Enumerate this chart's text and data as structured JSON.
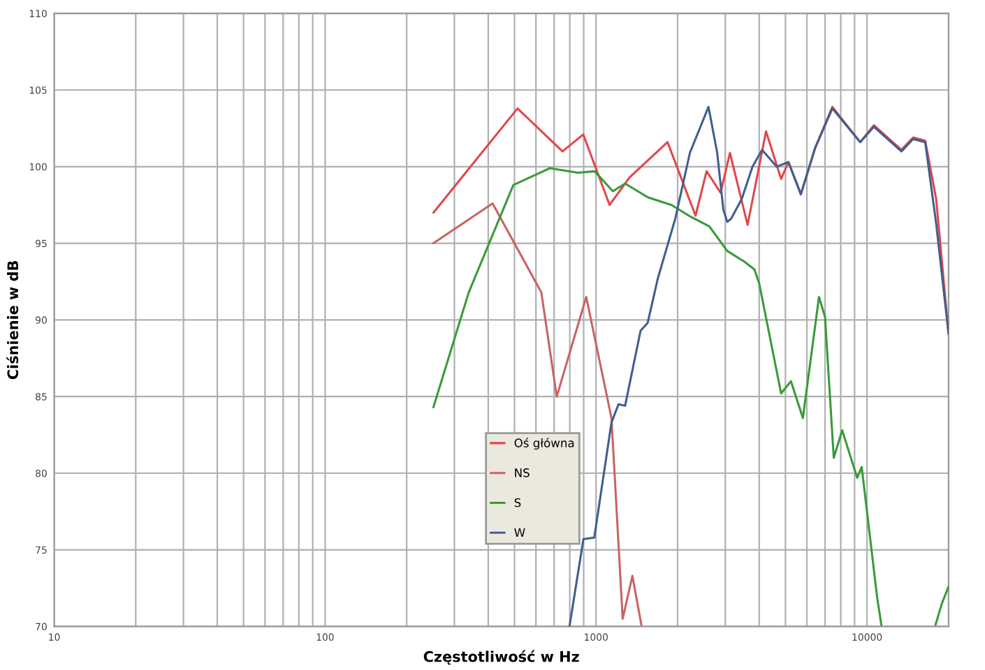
{
  "chart_data": {
    "type": "line",
    "xlabel": "Częstotliwość w Hz",
    "ylabel": "Ciśnienie w dB",
    "log": "x",
    "grid": true,
    "legend": "center",
    "marker": "none",
    "line_style": "solid",
    "xlim": [
      10,
      20000
    ],
    "ylim": [
      70,
      110
    ],
    "xticks": [
      10,
      {
        "value": 20,
        "label": null
      },
      {
        "value": 30,
        "label": null
      },
      {
        "value": 40,
        "label": null
      },
      {
        "value": 50,
        "label": null
      },
      {
        "value": 60,
        "label": null
      },
      {
        "value": 70,
        "label": null
      },
      {
        "value": 80,
        "label": null
      },
      {
        "value": 90,
        "label": null
      },
      100,
      {
        "value": 200,
        "label": null
      },
      {
        "value": 300,
        "label": null
      },
      {
        "value": 400,
        "label": null
      },
      {
        "value": 500,
        "label": null
      },
      {
        "value": 600,
        "label": null
      },
      {
        "value": 700,
        "label": null
      },
      {
        "value": 800,
        "label": null
      },
      {
        "value": 900,
        "label": null
      },
      1000,
      {
        "value": 2000,
        "label": null
      },
      {
        "value": 3000,
        "label": null
      },
      {
        "value": 4000,
        "label": null
      },
      {
        "value": 5000,
        "label": null
      },
      {
        "value": 6000,
        "label": null
      },
      {
        "value": 7000,
        "label": null
      },
      {
        "value": 8000,
        "label": null
      },
      {
        "value": 9000,
        "label": null
      },
      10000
    ],
    "yticks": [
      70,
      75,
      80,
      85,
      90,
      95,
      100,
      105,
      110
    ],
    "series": [
      {
        "name": "Oś główna",
        "color": "#e0474c",
        "x": [
          251,
          513,
          752,
          897,
          1122,
          1330,
          1836,
          2329,
          2558,
          2882,
          3120,
          3625,
          4240,
          4820,
          5130,
          5700,
          6430,
          7450,
          9440,
          10600,
          13400,
          14800,
          16400,
          18000,
          20000
        ],
        "values": [
          97.0,
          103.8,
          101.0,
          102.1,
          97.5,
          99.3,
          101.6,
          96.8,
          99.7,
          98.3,
          100.9,
          96.2,
          102.3,
          99.2,
          100.3,
          98.2,
          101.2,
          103.9,
          101.6,
          102.7,
          101.1,
          101.9,
          101.7,
          97.9,
          89.1
        ]
      },
      {
        "name": "NS",
        "color": "#c86464",
        "x": [
          251,
          415,
          628,
          716,
          920,
          1140,
          1254,
          1362,
          1470
        ],
        "values": [
          95.0,
          97.6,
          91.8,
          85.0,
          91.5,
          83.6,
          70.5,
          73.3,
          70.1
        ]
      },
      {
        "name": "S",
        "color": "#3a9a3a",
        "x": [
          251,
          339,
          495,
          675,
          857,
          988,
          1154,
          1280,
          1553,
          1900,
          2200,
          2620,
          3050,
          3530,
          3840,
          4000,
          4820,
          5240,
          5800,
          6650,
          7000,
          7540,
          8100,
          9200,
          9560,
          10000,
          10900,
          11300,
          15000,
          17900,
          18900,
          20000
        ],
        "values": [
          84.3,
          91.8,
          98.8,
          99.9,
          99.6,
          99.7,
          98.4,
          98.9,
          98.0,
          97.5,
          96.8,
          96.1,
          94.5,
          93.8,
          93.3,
          92.4,
          85.2,
          86.0,
          83.6,
          91.5,
          90.2,
          81.0,
          82.8,
          79.7,
          80.4,
          77.5,
          71.9,
          70.1,
          null,
          70.1,
          71.5,
          72.6
        ]
      },
      {
        "name": "W",
        "color": "#3f5f8f",
        "x": [
          798,
          898,
          985,
          1140,
          1210,
          1280,
          1460,
          1550,
          1690,
          1960,
          2220,
          2600,
          2800,
          2950,
          3050,
          3150,
          3450,
          3780,
          4100,
          4640,
          5130,
          5700,
          6430,
          7450,
          9440,
          10600,
          13400,
          14800,
          16400,
          18000,
          20000
        ],
        "values": [
          70.0,
          75.7,
          75.8,
          83.3,
          84.5,
          84.4,
          89.3,
          89.8,
          92.7,
          96.6,
          100.9,
          103.9,
          100.9,
          97.2,
          96.4,
          96.6,
          97.9,
          100.0,
          101.1,
          100.0,
          100.3,
          98.2,
          101.2,
          103.8,
          101.6,
          102.6,
          101.0,
          101.8,
          101.6,
          96.3,
          89.1
        ]
      }
    ]
  }
}
